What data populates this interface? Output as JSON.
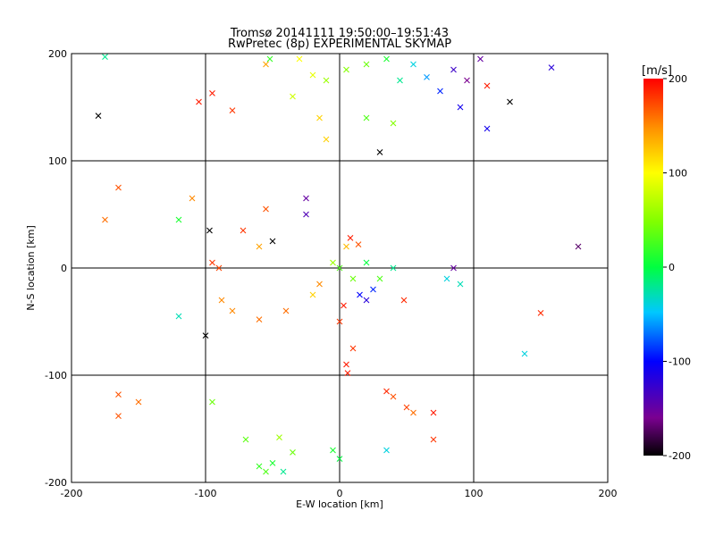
{
  "chart_data": {
    "type": "scatter",
    "title": "Tromsø 20141111 19:50:00–19:51:43",
    "subtitle": "RwPretec (8p) EXPERIMENTAL SKYMAP",
    "xlabel": "E-W location [km]",
    "ylabel": "N-S location [km]",
    "xlim": [
      -200,
      200
    ],
    "ylim": [
      -200,
      200
    ],
    "x_ticks": [
      -200,
      -100,
      0,
      100,
      200
    ],
    "y_ticks": [
      -200,
      -100,
      0,
      100,
      200
    ],
    "grid": true,
    "colorbar": {
      "label": "[m/s]",
      "range": [
        -200,
        200
      ],
      "ticks": [
        200,
        100,
        0,
        -100,
        -200
      ],
      "colormap": "rainbow (black-purple-blue-cyan-green-yellow-red)"
    },
    "markers": [
      "x",
      "dot"
    ],
    "points": [
      {
        "x": -180,
        "y": 142,
        "v": -200,
        "m": "x"
      },
      {
        "x": -165,
        "y": 75,
        "v": 170,
        "m": "x"
      },
      {
        "x": -175,
        "y": 45,
        "v": 160,
        "m": "x"
      },
      {
        "x": -165,
        "y": -118,
        "v": 170,
        "m": "x"
      },
      {
        "x": -165,
        "y": -138,
        "v": 170,
        "m": "x"
      },
      {
        "x": -150,
        "y": -125,
        "v": 160,
        "m": "x"
      },
      {
        "x": -175,
        "y": 197,
        "v": -20,
        "m": "x"
      },
      {
        "x": -105,
        "y": 155,
        "v": 190,
        "m": "x"
      },
      {
        "x": -95,
        "y": 163,
        "v": 190,
        "m": "x"
      },
      {
        "x": -80,
        "y": 147,
        "v": 180,
        "m": "x"
      },
      {
        "x": -97,
        "y": 35,
        "v": -200,
        "m": "x"
      },
      {
        "x": -100,
        "y": -63,
        "v": -200,
        "m": "x"
      },
      {
        "x": -120,
        "y": 45,
        "v": 10,
        "m": "x"
      },
      {
        "x": -72,
        "y": 35,
        "v": 180,
        "m": "x"
      },
      {
        "x": -50,
        "y": 25,
        "v": -200,
        "m": "x"
      },
      {
        "x": -88,
        "y": -30,
        "v": 150,
        "m": "x"
      },
      {
        "x": -60,
        "y": -48,
        "v": 160,
        "m": "x"
      },
      {
        "x": -95,
        "y": 5,
        "v": 180,
        "m": "x"
      },
      {
        "x": -90,
        "y": 0,
        "v": 175,
        "m": "x"
      },
      {
        "x": -60,
        "y": 20,
        "v": 140,
        "m": "x"
      },
      {
        "x": -55,
        "y": 55,
        "v": 170,
        "m": "x"
      },
      {
        "x": -25,
        "y": 65,
        "v": -150,
        "m": "x"
      },
      {
        "x": -55,
        "y": 190,
        "v": 140,
        "m": "x"
      },
      {
        "x": -30,
        "y": 195,
        "v": 100,
        "m": "x"
      },
      {
        "x": -20,
        "y": 180,
        "v": 90,
        "m": "x"
      },
      {
        "x": -10,
        "y": 175,
        "v": 60,
        "m": "x"
      },
      {
        "x": 5,
        "y": 185,
        "v": 50,
        "m": "x"
      },
      {
        "x": 20,
        "y": 190,
        "v": 40,
        "m": "x"
      },
      {
        "x": 35,
        "y": 195,
        "v": 10,
        "m": "x"
      },
      {
        "x": 45,
        "y": 175,
        "v": -20,
        "m": "x"
      },
      {
        "x": 55,
        "y": 190,
        "v": -40,
        "m": "x"
      },
      {
        "x": 65,
        "y": 178,
        "v": -60,
        "m": "x"
      },
      {
        "x": 75,
        "y": 165,
        "v": -90,
        "m": "x"
      },
      {
        "x": 85,
        "y": 185,
        "v": -130,
        "m": "x"
      },
      {
        "x": 90,
        "y": 150,
        "v": -110,
        "m": "x"
      },
      {
        "x": 95,
        "y": 175,
        "v": -160,
        "m": "x"
      },
      {
        "x": 105,
        "y": 195,
        "v": -150,
        "m": "x"
      },
      {
        "x": 110,
        "y": 170,
        "v": 190,
        "m": "x"
      },
      {
        "x": 127,
        "y": 155,
        "v": -200,
        "m": "x"
      },
      {
        "x": 110,
        "y": 130,
        "v": -110,
        "m": "x"
      },
      {
        "x": 30,
        "y": 108,
        "v": -200,
        "m": "x"
      },
      {
        "x": 158,
        "y": 187,
        "v": -120,
        "m": "x"
      },
      {
        "x": 178,
        "y": 20,
        "v": -170,
        "m": "x"
      },
      {
        "x": 150,
        "y": -42,
        "v": 185,
        "m": "x"
      },
      {
        "x": 138,
        "y": -80,
        "v": -40,
        "m": "x"
      },
      {
        "x": -25,
        "y": 50,
        "v": -140,
        "m": "x"
      },
      {
        "x": -52,
        "y": 195,
        "v": 20,
        "m": "x"
      },
      {
        "x": 8,
        "y": 28,
        "v": 190,
        "m": "x"
      },
      {
        "x": 14,
        "y": 22,
        "v": 170,
        "m": "x"
      },
      {
        "x": 5,
        "y": 20,
        "v": 130,
        "m": "x"
      },
      {
        "x": 0,
        "y": -50,
        "v": 180,
        "m": "x"
      },
      {
        "x": 3,
        "y": -35,
        "v": 190,
        "m": "x"
      },
      {
        "x": -15,
        "y": -15,
        "v": 150,
        "m": "x"
      },
      {
        "x": -20,
        "y": -25,
        "v": 120,
        "m": "x"
      },
      {
        "x": 20,
        "y": -30,
        "v": -120,
        "m": "x"
      },
      {
        "x": 15,
        "y": -25,
        "v": -100,
        "m": "x"
      },
      {
        "x": 25,
        "y": -20,
        "v": -90,
        "m": "x"
      },
      {
        "x": 30,
        "y": -10,
        "v": 30,
        "m": "x"
      },
      {
        "x": 10,
        "y": -10,
        "v": 40,
        "m": "x"
      },
      {
        "x": 0,
        "y": 0,
        "v": 30,
        "m": "x"
      },
      {
        "x": -5,
        "y": 5,
        "v": 60,
        "m": "x"
      },
      {
        "x": 20,
        "y": 5,
        "v": 0,
        "m": "x"
      },
      {
        "x": 40,
        "y": 0,
        "v": -20,
        "m": "x"
      },
      {
        "x": 80,
        "y": -10,
        "v": -40,
        "m": "x"
      },
      {
        "x": 90,
        "y": -15,
        "v": -30,
        "m": "x"
      },
      {
        "x": 85,
        "y": 0,
        "v": -150,
        "m": "x"
      },
      {
        "x": 48,
        "y": -30,
        "v": 185,
        "m": "x"
      },
      {
        "x": 5,
        "y": -90,
        "v": 190,
        "m": "x"
      },
      {
        "x": 6,
        "y": -98,
        "v": 190,
        "m": "x"
      },
      {
        "x": 35,
        "y": -115,
        "v": 185,
        "m": "x"
      },
      {
        "x": 40,
        "y": -120,
        "v": 170,
        "m": "x"
      },
      {
        "x": 50,
        "y": -130,
        "v": 175,
        "m": "x"
      },
      {
        "x": 55,
        "y": -135,
        "v": 160,
        "m": "x"
      },
      {
        "x": 70,
        "y": -135,
        "v": 190,
        "m": "x"
      },
      {
        "x": 70,
        "y": -160,
        "v": 180,
        "m": "x"
      },
      {
        "x": 35,
        "y": -170,
        "v": -40,
        "m": "x"
      },
      {
        "x": -35,
        "y": -172,
        "v": 40,
        "m": "x"
      },
      {
        "x": -45,
        "y": -158,
        "v": 60,
        "m": "x"
      },
      {
        "x": -50,
        "y": -182,
        "v": 10,
        "m": "x"
      },
      {
        "x": -55,
        "y": -190,
        "v": 30,
        "m": "x"
      },
      {
        "x": -60,
        "y": -185,
        "v": 20,
        "m": "x"
      },
      {
        "x": -70,
        "y": -160,
        "v": 35,
        "m": "x"
      },
      {
        "x": -95,
        "y": -125,
        "v": 40,
        "m": "x"
      },
      {
        "x": -42,
        "y": -190,
        "v": -20,
        "m": "x"
      },
      {
        "x": -5,
        "y": -170,
        "v": 10,
        "m": "x"
      },
      {
        "x": 0,
        "y": -178,
        "v": 0,
        "m": "x"
      },
      {
        "x": 40,
        "y": 135,
        "v": 50,
        "m": "x"
      },
      {
        "x": 20,
        "y": 140,
        "v": 30,
        "m": "x"
      },
      {
        "x": -15,
        "y": 140,
        "v": 120,
        "m": "x"
      },
      {
        "x": -35,
        "y": 160,
        "v": 80,
        "m": "x"
      },
      {
        "x": -10,
        "y": 120,
        "v": 120,
        "m": "x"
      },
      {
        "x": -120,
        "y": -45,
        "v": -30,
        "m": "x"
      },
      {
        "x": -110,
        "y": 65,
        "v": 150,
        "m": "x"
      },
      {
        "x": -80,
        "y": -40,
        "v": 150,
        "m": "x"
      },
      {
        "x": -40,
        "y": -40,
        "v": 160,
        "m": "x"
      },
      {
        "x": 10,
        "y": -75,
        "v": 180,
        "m": "x"
      }
    ]
  }
}
